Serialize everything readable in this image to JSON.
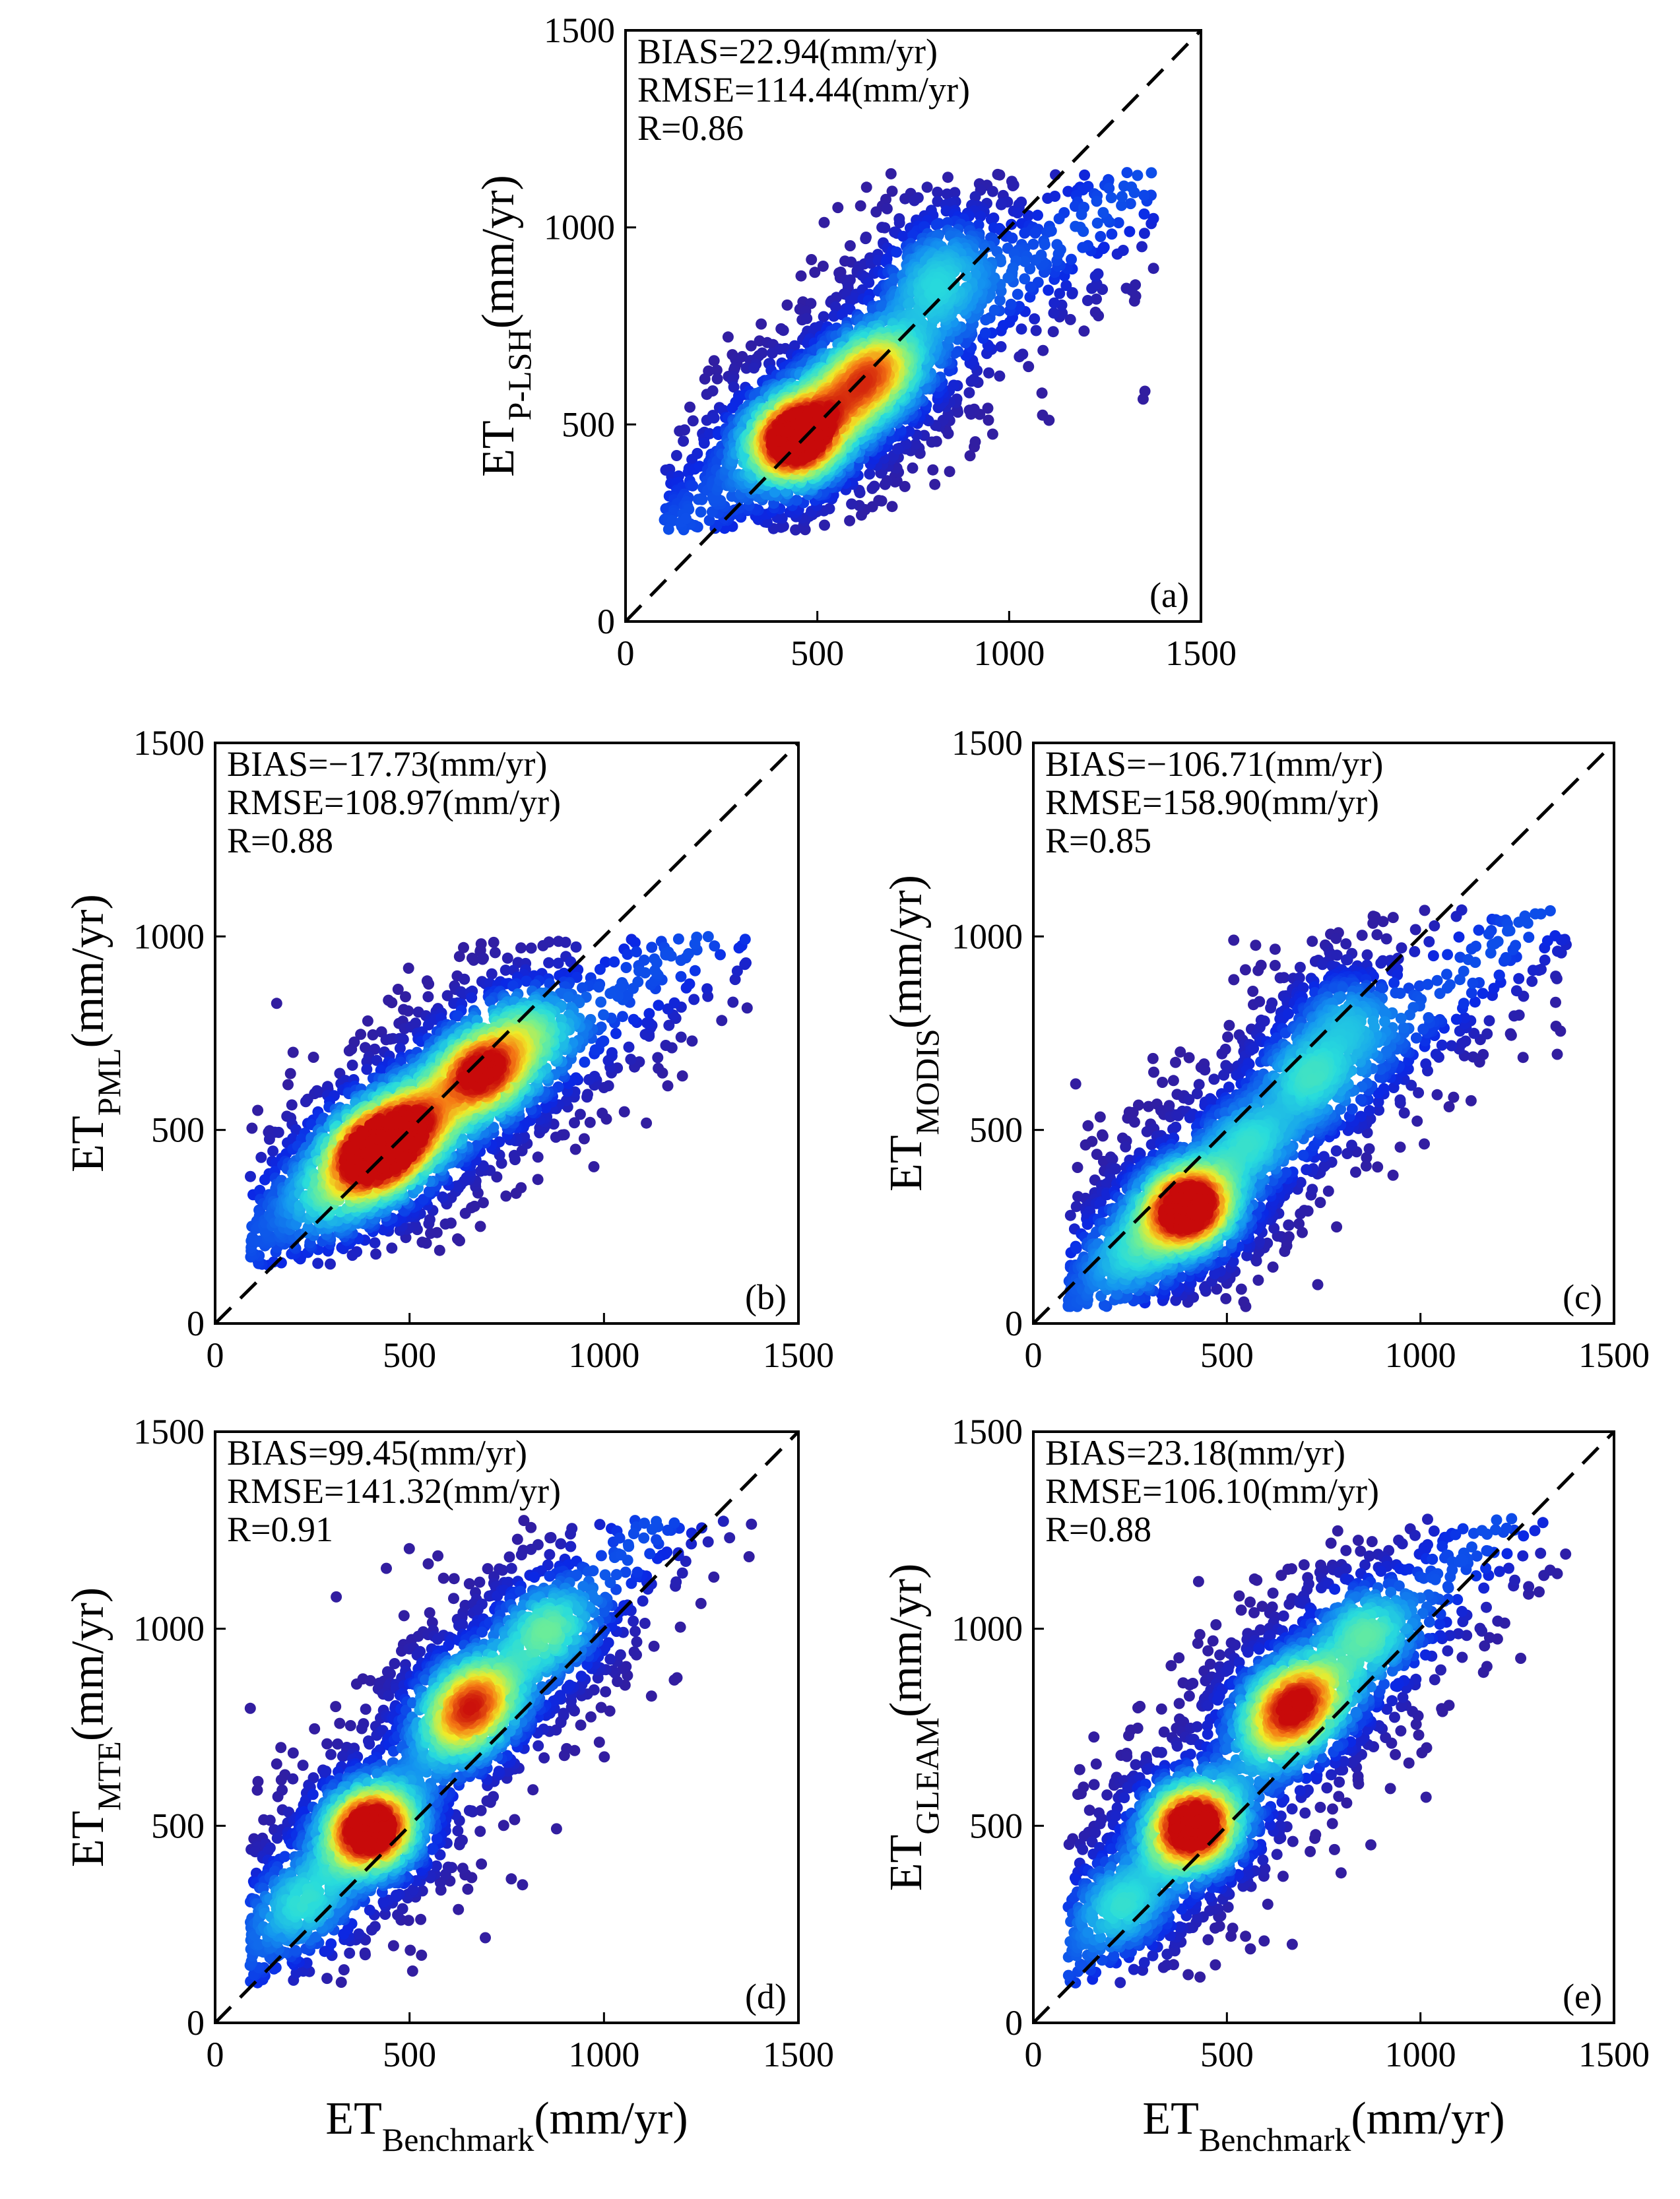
{
  "chart_data": [
    {
      "type": "scatter",
      "panel": "(a)",
      "ylabel": {
        "main": "ET",
        "sub": "P-LSH",
        "unit": "(mm/yr)"
      },
      "xlabel": null,
      "xlim": [
        0,
        1500
      ],
      "ylim": [
        0,
        1500
      ],
      "xticks": [
        "0",
        "500",
        "1000",
        "1500"
      ],
      "yticks": [
        "0",
        "500",
        "1000",
        "1500"
      ],
      "stats": [
        "BIAS=22.94(mm/yr)",
        "RMSE=114.44(mm/yr)",
        "R=0.86"
      ],
      "reference_line": "1:1 dashed",
      "density_peaks": [
        [
          440,
          460,
          1.0
        ],
        [
          660,
          650,
          0.55
        ],
        [
          570,
          560,
          0.45
        ],
        [
          780,
          850,
          0.3
        ],
        [
          850,
          950,
          0.2
        ]
      ],
      "spread": {
        "xmin": 100,
        "xmax": 1380,
        "ymin": 230,
        "ymax": 1150,
        "slope": 0.72,
        "intercept": 150
      }
    },
    {
      "type": "scatter",
      "panel": "(b)",
      "ylabel": {
        "main": "ET",
        "sub": "PML",
        "unit": "(mm/yr)"
      },
      "xlabel": null,
      "xlim": [
        0,
        1500
      ],
      "ylim": [
        0,
        1500
      ],
      "xticks": [
        "0",
        "500",
        "1000",
        "1500"
      ],
      "yticks": [
        "0",
        "500",
        "1000",
        "1500"
      ],
      "stats": [
        "BIAS=−17.73(mm/yr)",
        "RMSE=108.97(mm/yr)",
        "R=0.88"
      ],
      "reference_line": "1:1 dashed",
      "density_peaks": [
        [
          410,
          440,
          1.0
        ],
        [
          680,
          650,
          0.8
        ],
        [
          520,
          530,
          0.6
        ],
        [
          800,
          760,
          0.4
        ],
        [
          300,
          330,
          0.3
        ]
      ],
      "spread": {
        "xmin": 90,
        "xmax": 1380,
        "ymin": 150,
        "ymax": 1000,
        "slope": 0.68,
        "intercept": 150
      }
    },
    {
      "type": "scatter",
      "panel": "(c)",
      "ylabel": {
        "main": "ET",
        "sub": "MODIS",
        "unit": "(mm/yr)"
      },
      "xlabel": null,
      "xlim": [
        0,
        1500
      ],
      "ylim": [
        0,
        1500
      ],
      "xticks": [
        "0",
        "500",
        "1000",
        "1500"
      ],
      "yticks": [
        "0",
        "500",
        "1000",
        "1500"
      ],
      "stats": [
        "BIAS=−106.71(mm/yr)",
        "RMSE=158.90(mm/yr)",
        "R=0.85"
      ],
      "reference_line": "1:1 dashed",
      "density_peaks": [
        [
          400,
          300,
          1.0
        ],
        [
          700,
          650,
          0.35
        ],
        [
          800,
          800,
          0.3
        ],
        [
          550,
          480,
          0.3
        ],
        [
          250,
          180,
          0.25
        ]
      ],
      "spread": {
        "xmin": 90,
        "xmax": 1380,
        "ymin": 40,
        "ymax": 1070,
        "slope": 0.85,
        "intercept": -40
      }
    },
    {
      "type": "scatter",
      "panel": "(d)",
      "ylabel": {
        "main": "ET",
        "sub": "MTE",
        "unit": "(mm/yr)"
      },
      "xlabel": {
        "main": "ET",
        "sub": "Benchmark",
        "unit": "(mm/yr)"
      },
      "xlim": [
        0,
        1500
      ],
      "ylim": [
        0,
        1500
      ],
      "xticks": [
        "0",
        "500",
        "1000",
        "1500"
      ],
      "yticks": [
        "0",
        "500",
        "1000",
        "1500"
      ],
      "stats": [
        "BIAS=99.45(mm/yr)",
        "RMSE=141.32(mm/yr)",
        "R=0.91"
      ],
      "reference_line": "1:1 dashed",
      "density_peaks": [
        [
          400,
          490,
          1.0
        ],
        [
          680,
          840,
          0.5
        ],
        [
          620,
          760,
          0.45
        ],
        [
          850,
          1000,
          0.4
        ],
        [
          230,
          300,
          0.3
        ]
      ],
      "spread": {
        "xmin": 90,
        "xmax": 1380,
        "ymin": 100,
        "ymax": 1280,
        "slope": 1.05,
        "intercept": 80
      }
    },
    {
      "type": "scatter",
      "panel": "(e)",
      "ylabel": {
        "main": "ET",
        "sub": "GLEAM",
        "unit": "(mm/yr)"
      },
      "xlabel": {
        "main": "ET",
        "sub": "Benchmark",
        "unit": "(mm/yr)"
      },
      "xlim": [
        0,
        1500
      ],
      "ylim": [
        0,
        1500
      ],
      "xticks": [
        "0",
        "500",
        "1000",
        "1500"
      ],
      "yticks": [
        "0",
        "500",
        "1000",
        "1500"
      ],
      "stats": [
        "BIAS=23.18(mm/yr)",
        "RMSE=106.10(mm/yr)",
        "R=0.88"
      ],
      "reference_line": "1:1 dashed",
      "density_peaks": [
        [
          410,
          500,
          1.0
        ],
        [
          700,
          840,
          0.6
        ],
        [
          620,
          760,
          0.5
        ],
        [
          850,
          1000,
          0.4
        ],
        [
          230,
          300,
          0.3
        ]
      ],
      "spread": {
        "xmin": 90,
        "xmax": 1380,
        "ymin": 100,
        "ymax": 1280,
        "slope": 1.0,
        "intercept": 70
      }
    }
  ]
}
